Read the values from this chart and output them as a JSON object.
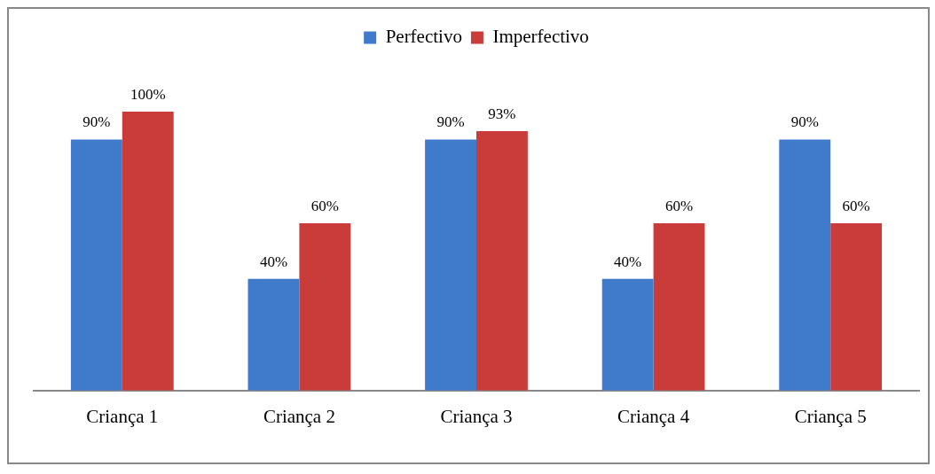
{
  "chart_data": {
    "type": "bar",
    "categories": [
      "Criança 1",
      "Criança 2",
      "Criança 3",
      "Criança 4",
      "Criança 5"
    ],
    "series": [
      {
        "name": "Perfectivo",
        "color": "#3f7acb",
        "values": [
          90,
          40,
          90,
          40,
          90
        ],
        "value_labels": [
          "90%",
          "40%",
          "90%",
          "40%",
          "90%"
        ]
      },
      {
        "name": "Imperfectivo",
        "color": "#c93c3a",
        "values": [
          100,
          60,
          93,
          60,
          60
        ],
        "value_labels": [
          "100%",
          "60%",
          "93%",
          "60%",
          "60%"
        ]
      }
    ],
    "tick_labels": "x",
    "legend": "top",
    "grid": false
  }
}
